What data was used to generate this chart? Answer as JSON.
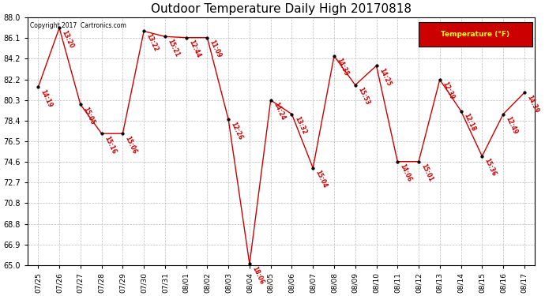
{
  "title": "Outdoor Temperature Daily High 20170818",
  "copyright_text": "Copyright 2017  Cartronics.com",
  "legend_label": "Temperature (°F)",
  "ylim": [
    65.0,
    88.0
  ],
  "ytick_vals": [
    65.0,
    66.9,
    68.8,
    70.8,
    72.7,
    74.6,
    76.5,
    78.4,
    80.3,
    82.2,
    84.2,
    86.1,
    88.0
  ],
  "dates": [
    "07/25",
    "07/26",
    "07/27",
    "07/28",
    "07/29",
    "07/30",
    "07/31",
    "08/01",
    "08/02",
    "08/03",
    "08/04",
    "08/05",
    "08/06",
    "08/07",
    "08/08",
    "08/09",
    "08/10",
    "08/11",
    "08/12",
    "08/13",
    "08/14",
    "08/15",
    "08/16",
    "08/17"
  ],
  "temperatures": [
    81.5,
    87.0,
    79.9,
    77.2,
    77.2,
    86.7,
    86.2,
    86.1,
    86.1,
    78.5,
    65.1,
    80.3,
    79.0,
    74.0,
    84.4,
    81.7,
    83.5,
    74.6,
    74.6,
    82.2,
    79.3,
    75.1,
    79.0,
    81.0
  ],
  "times": [
    "14:19",
    "13:20",
    "15:05",
    "15:16",
    "15:06",
    "13:22",
    "15:21",
    "12:44",
    "11:09",
    "12:26",
    "18:06",
    "14:24",
    "13:32",
    "15:04",
    "14:35",
    "15:53",
    "14:25",
    "14:06",
    "15:01",
    "12:39",
    "12:18",
    "15:36",
    "12:49",
    "14:39"
  ],
  "line_color": "#cc0000",
  "marker_color": "#000000",
  "label_color": "#cc0000",
  "bg_color": "#ffffff",
  "grid_color": "#bbbbbb",
  "title_fontsize": 11,
  "legend_bg": "#cc0000",
  "legend_text_color": "#ffff00"
}
